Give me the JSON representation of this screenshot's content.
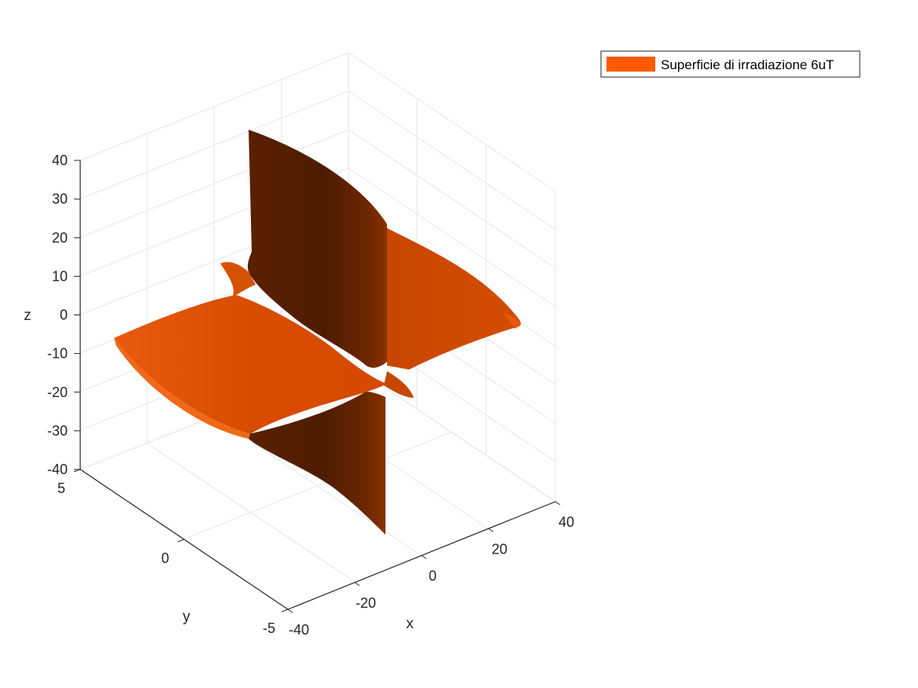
{
  "chart_data": {
    "type": "surface3d",
    "title": "",
    "xlabel": "x",
    "ylabel": "y",
    "zlabel": "z",
    "x_ticks": [
      -40,
      -20,
      0,
      20,
      40
    ],
    "y_ticks": [
      -5,
      0,
      5
    ],
    "z_ticks": [
      -40,
      -30,
      -20,
      -10,
      0,
      10,
      20,
      30,
      40
    ],
    "xlim": [
      -40,
      40
    ],
    "ylim": [
      -5,
      5
    ],
    "zlim": [
      -40,
      40
    ],
    "grid": true,
    "legend_position": "top-right",
    "series": [
      {
        "name": "Superficie di irradiazione 6uT",
        "color": "#ff5a00",
        "description_parts": {
          "horizontal_wing": {
            "x_range": [
              -40,
              40
            ],
            "z_range": [
              -8,
              8
            ]
          },
          "vertical_wing": {
            "z_range": [
              -40,
              40
            ],
            "x_range": [
              -4,
              4
            ]
          }
        }
      }
    ]
  }
}
